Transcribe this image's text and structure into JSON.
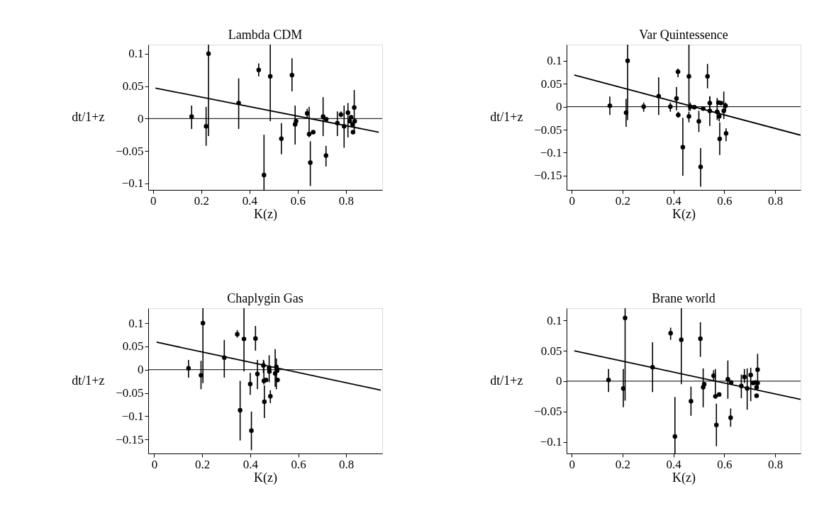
{
  "chart_data": [
    {
      "type": "scatter",
      "title": "Lambda CDM",
      "xlabel": "K(z)",
      "ylabel": "dt/1+z",
      "xlim": [
        -0.02,
        0.95
      ],
      "ylim": [
        -0.11,
        0.114
      ],
      "xticks": [
        0,
        0.2,
        0.4,
        0.6,
        0.8
      ],
      "yticks": [
        -0.1,
        -0.05,
        0,
        0.05,
        0.1
      ],
      "grid": false,
      "ref_lines": [
        {
          "axis": "y",
          "value": 0,
          "color": "#000000"
        }
      ],
      "series": [
        {
          "marker": "circle",
          "color": "#000000",
          "x": [
            0.16,
            0.23,
            0.22,
            0.355,
            0.438,
            0.486,
            0.46,
            0.532,
            0.576,
            0.589,
            0.593,
            0.639,
            0.647,
            0.652,
            0.664,
            0.705,
            0.718,
            0.717,
            0.764,
            0.779,
            0.792,
            0.808,
            0.815,
            0.821,
            0.827,
            0.829,
            0.834,
            0.836
          ],
          "values": [
            0.003,
            0.1,
            -0.012,
            0.024,
            0.075,
            0.065,
            -0.087,
            -0.031,
            0.067,
            -0.009,
            -0.004,
            0.008,
            -0.024,
            -0.068,
            -0.021,
            0.003,
            -0.001,
            -0.057,
            -0.007,
            0.006,
            -0.012,
            0.009,
            -0.004,
            0.002,
            -0.009,
            -0.021,
            0.017,
            -0.004
          ],
          "errors": [
            [
              -0.016,
              0.02
            ],
            [
              -0.027,
              0.114
            ],
            [
              -0.042,
              0.018
            ],
            [
              -0.016,
              0.062
            ],
            [
              0.065,
              0.085
            ],
            [
              -0.004,
              0.114
            ],
            [
              -0.11,
              -0.025
            ],
            [
              -0.055,
              -0.007
            ],
            [
              0.042,
              0.093
            ],
            [
              -0.04,
              0.02
            ],
            null,
            [
              0.0,
              0.015
            ],
            [
              -0.029,
              0.018
            ],
            [
              -0.104,
              -0.035
            ],
            null,
            [
              -0.027,
              0.033
            ],
            null,
            [
              -0.074,
              -0.042
            ],
            [
              -0.027,
              0.011
            ],
            [
              0.002,
              0.011
            ],
            [
              -0.045,
              0.02
            ],
            [
              -0.029,
              0.024
            ],
            null,
            null,
            null,
            null,
            [
              -0.022,
              0.044
            ],
            null
          ]
        },
        {
          "type": "line",
          "marker": "none",
          "color": "#000000",
          "line_style": "solid",
          "x": [
            0.01,
            0.936
          ],
          "values": [
            0.047,
            -0.021
          ]
        }
      ]
    },
    {
      "type": "scatter",
      "title": "Var Quintessence",
      "xlabel": "K(z)",
      "ylabel": "dt/1+z",
      "xlim": [
        -0.02,
        0.9
      ],
      "ylim": [
        -0.181,
        0.135
      ],
      "xticks": [
        0,
        0.2,
        0.4,
        0.6,
        0.8
      ],
      "yticks": [
        -0.15,
        -0.1,
        -0.05,
        0,
        0.05,
        0.1
      ],
      "grid": false,
      "ref_lines": [
        {
          "axis": "y",
          "value": 0,
          "color": "#000000"
        }
      ],
      "series": [
        {
          "marker": "circle",
          "color": "#000000",
          "x": [
            0.15,
            0.22,
            0.214,
            0.283,
            0.342,
            0.388,
            0.412,
            0.418,
            0.419,
            0.437,
            0.461,
            0.461,
            0.466,
            0.482,
            0.5,
            0.507,
            0.517,
            0.534,
            0.543,
            0.543,
            0.572,
            0.577,
            0.58,
            0.582,
            0.587,
            0.598,
            0.605,
            0.607
          ],
          "values": [
            0.002,
            0.1,
            -0.013,
            0.0,
            0.023,
            0.0,
            0.018,
            0.076,
            -0.018,
            -0.088,
            0.066,
            -0.021,
            0.0,
            -0.001,
            -0.032,
            -0.131,
            -0.004,
            0.066,
            0.008,
            -0.009,
            -0.011,
            0.009,
            -0.021,
            -0.07,
            0.008,
            -0.009,
            0.002,
            -0.058
          ],
          "errors": [
            [
              -0.018,
              0.022
            ],
            [
              -0.029,
              0.135
            ],
            [
              -0.044,
              0.017
            ],
            [
              -0.011,
              0.009
            ],
            [
              -0.018,
              0.064
            ],
            [
              -0.011,
              0.009
            ],
            [
              -0.008,
              0.043
            ],
            [
              0.064,
              0.083
            ],
            [
              -0.024,
              -0.011
            ],
            [
              -0.15,
              -0.024
            ],
            [
              -0.009,
              0.135
            ],
            [
              -0.034,
              -0.011
            ],
            [
              -0.009,
              0.009
            ],
            null,
            [
              -0.055,
              -0.009
            ],
            [
              -0.174,
              -0.09
            ],
            null,
            [
              0.04,
              0.093
            ],
            [
              -0.009,
              0.023
            ],
            [
              -0.042,
              0.022
            ],
            [
              -0.029,
              0.019
            ],
            null,
            [
              -0.032,
              -0.011
            ],
            [
              -0.105,
              -0.034
            ],
            null,
            [
              -0.027,
              0.033
            ],
            [
              -0.009,
              0.009
            ],
            [
              -0.075,
              -0.047
            ]
          ]
        },
        {
          "type": "line",
          "marker": "none",
          "color": "#000000",
          "line_style": "solid",
          "x": [
            0.01,
            0.9
          ],
          "values": [
            0.069,
            -0.062
          ]
        }
      ]
    },
    {
      "type": "scatter",
      "title": "Chaplygin Gas",
      "xlabel": "K(z)",
      "ylabel": "dt/1+z",
      "xlim": [
        -0.025,
        0.95
      ],
      "ylim": [
        -0.18,
        0.132
      ],
      "xticks": [
        0,
        0.2,
        0.4,
        0.6,
        0.8
      ],
      "yticks": [
        -0.15,
        -0.1,
        -0.05,
        0,
        0.05,
        0.1
      ],
      "grid": false,
      "ref_lines": [
        {
          "axis": "y",
          "value": 0,
          "color": "#000000"
        }
      ],
      "series": [
        {
          "marker": "circle",
          "color": "#000000",
          "x": [
            0.143,
            0.203,
            0.195,
            0.292,
            0.346,
            0.374,
            0.358,
            0.4,
            0.405,
            0.422,
            0.43,
            0.455,
            0.457,
            0.459,
            0.466,
            0.479,
            0.484,
            0.48,
            0.504,
            0.509,
            0.514,
            0.512
          ],
          "values": [
            0.003,
            0.1,
            -0.012,
            0.026,
            0.076,
            0.066,
            -0.087,
            -0.031,
            -0.131,
            0.067,
            -0.009,
            0.009,
            -0.024,
            -0.069,
            -0.022,
            0.004,
            -0.057,
            -0.004,
            -0.008,
            0.006,
            -0.022,
            -0.002
          ],
          "errors": [
            [
              -0.017,
              0.021
            ],
            [
              -0.029,
              0.132
            ],
            [
              -0.042,
              0.019
            ],
            [
              -0.017,
              0.064
            ],
            [
              0.069,
              0.085
            ],
            [
              -0.004,
              0.132
            ],
            [
              -0.152,
              -0.024
            ],
            [
              -0.054,
              -0.007
            ],
            [
              -0.173,
              -0.09
            ],
            [
              0.041,
              0.094
            ],
            [
              -0.042,
              0.021
            ],
            [
              -0.007,
              0.021
            ],
            [
              -0.032,
              0.019
            ],
            [
              -0.104,
              -0.034
            ],
            null,
            [
              -0.027,
              0.031
            ],
            [
              -0.072,
              -0.044
            ],
            null,
            [
              -0.037,
              0.044
            ],
            [
              -0.042,
              0.024
            ],
            null,
            null
          ]
        },
        {
          "type": "line",
          "marker": "none",
          "color": "#000000",
          "line_style": "solid",
          "x": [
            0.01,
            0.944
          ],
          "values": [
            0.059,
            -0.044
          ]
        }
      ]
    },
    {
      "type": "scatter",
      "title": "Brane world",
      "xlabel": "K(z)",
      "ylabel": "dt/1+z",
      "xlim": [
        -0.02,
        0.9
      ],
      "ylim": [
        -0.119,
        0.12
      ],
      "xticks": [
        0,
        0.2,
        0.4,
        0.6,
        0.8
      ],
      "yticks": [
        -0.1,
        -0.05,
        0,
        0.05,
        0.1
      ],
      "grid": false,
      "ref_lines": [
        {
          "axis": "y",
          "value": 0,
          "color": "#000000"
        }
      ],
      "series": [
        {
          "marker": "circle",
          "color": "#000000",
          "x": [
            0.145,
            0.21,
            0.203,
            0.318,
            0.389,
            0.431,
            0.406,
            0.469,
            0.506,
            0.517,
            0.521,
            0.558,
            0.565,
            0.569,
            0.58,
            0.614,
            0.627,
            0.625,
            0.667,
            0.679,
            0.69,
            0.704,
            0.713,
            0.722,
            0.727,
            0.727,
            0.731,
            0.731
          ],
          "values": [
            0.002,
            0.104,
            -0.012,
            0.023,
            0.079,
            0.068,
            -0.091,
            -0.033,
            0.07,
            -0.01,
            -0.005,
            0.009,
            -0.025,
            -0.072,
            -0.022,
            0.003,
            -0.002,
            -0.06,
            -0.008,
            0.007,
            -0.012,
            0.01,
            -0.003,
            -0.002,
            -0.01,
            -0.024,
            0.019,
            -0.003
          ],
          "errors": [
            [
              -0.018,
              0.02
            ],
            [
              -0.032,
              0.12
            ],
            [
              -0.043,
              0.02
            ],
            [
              -0.018,
              0.064
            ],
            [
              0.068,
              0.088
            ],
            [
              -0.005,
              0.12
            ],
            [
              -0.119,
              -0.026
            ],
            [
              -0.057,
              -0.009
            ],
            [
              0.04,
              0.097
            ],
            [
              -0.043,
              0.021
            ],
            null,
            [
              0.0,
              0.018
            ],
            [
              -0.029,
              0.02
            ],
            [
              -0.107,
              -0.037
            ],
            null,
            [
              -0.029,
              0.034
            ],
            null,
            [
              -0.075,
              -0.045
            ],
            [
              -0.028,
              0.011
            ],
            [
              -0.003,
              0.02
            ],
            [
              -0.047,
              0.021
            ],
            [
              -0.033,
              0.022
            ],
            null,
            null,
            null,
            null,
            [
              -0.014,
              0.045
            ],
            null
          ]
        },
        {
          "type": "line",
          "marker": "none",
          "color": "#000000",
          "line_style": "solid",
          "x": [
            0.01,
            0.9
          ],
          "values": [
            0.05,
            -0.03
          ]
        }
      ]
    }
  ]
}
